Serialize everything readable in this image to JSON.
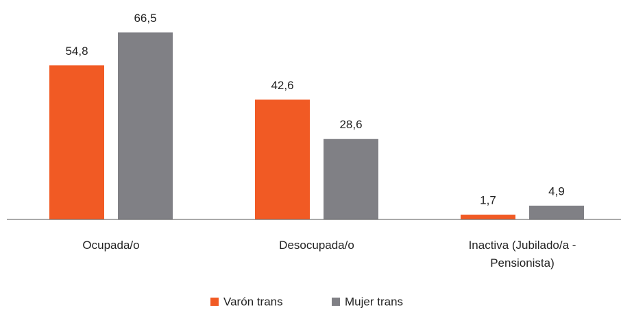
{
  "chart_data": {
    "type": "bar",
    "categories": [
      "Ocupada/o",
      "Desocupada/o",
      "Inactiva (Jubilado/a - Pensionista)"
    ],
    "series": [
      {
        "name": "Varón trans",
        "color": "#f15a24",
        "values": [
          54.8,
          42.6,
          1.7
        ],
        "value_labels": [
          "54,8",
          "42,6",
          "1,7"
        ]
      },
      {
        "name": "Mujer trans",
        "color": "#808085",
        "values": [
          66.5,
          28.6,
          4.9
        ],
        "value_labels": [
          "66,5",
          "28,6",
          "4,9"
        ]
      }
    ],
    "legend": "bottom"
  }
}
